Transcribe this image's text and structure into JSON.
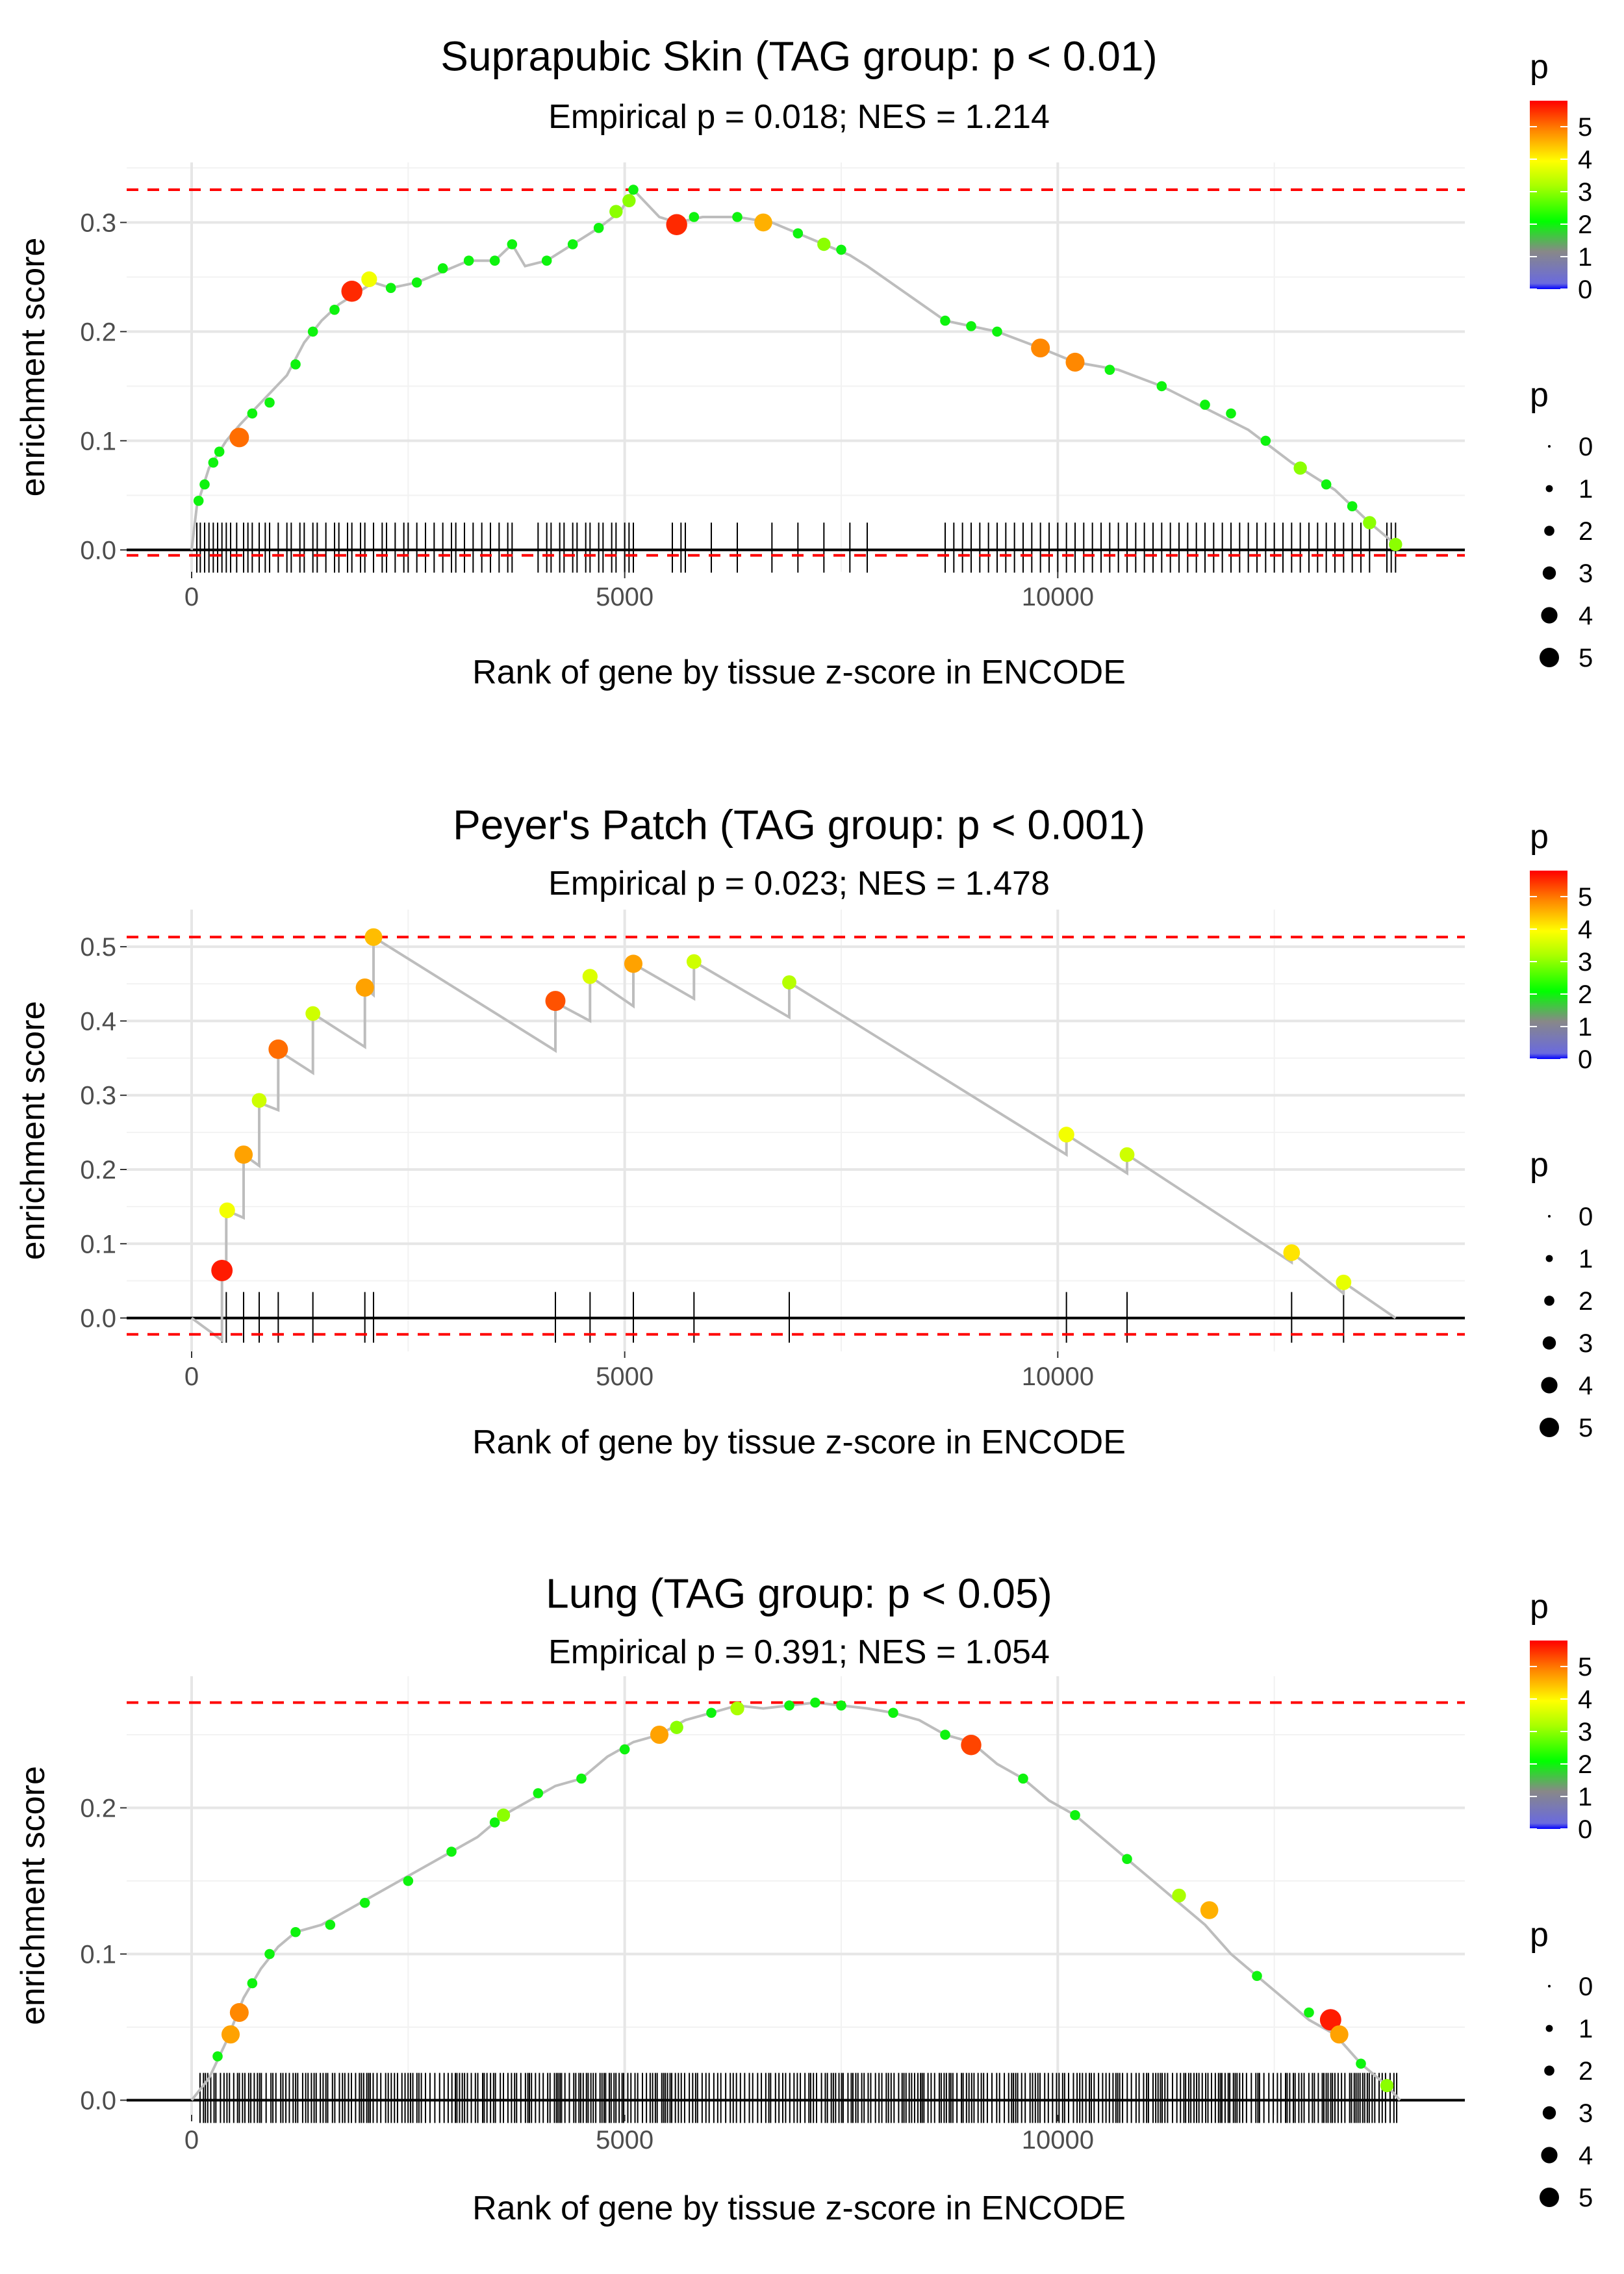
{
  "chart_data": [
    {
      "type": "line",
      "title": "Suprapubic Skin (TAG group: p < 0.01)",
      "subtitle": "Empirical p = 0.018; NES = 1.214",
      "xlabel": "Rank of gene by tissue z-score in ENCODE",
      "ylabel": "enrichment score",
      "xlim": [
        -750,
        14700
      ],
      "ylim": [
        -0.02,
        0.355
      ],
      "xticks": [
        0,
        5000,
        10000
      ],
      "xtick_labels": [
        "0",
        "5000",
        "10000"
      ],
      "yticks": [
        0.0,
        0.1,
        0.2,
        0.3
      ],
      "ytick_labels": [
        "0.0",
        "0.1",
        "0.2",
        "0.3"
      ],
      "max_es": 0.33,
      "min_es": -0.005,
      "grid": true,
      "path": [
        [
          0,
          0
        ],
        [
          60,
          0.04
        ],
        [
          200,
          0.075
        ],
        [
          400,
          0.1
        ],
        [
          560,
          0.115
        ],
        [
          800,
          0.135
        ],
        [
          1100,
          0.16
        ],
        [
          1300,
          0.19
        ],
        [
          1500,
          0.21
        ],
        [
          1700,
          0.225
        ],
        [
          1900,
          0.235
        ],
        [
          2100,
          0.245
        ],
        [
          2300,
          0.24
        ],
        [
          2600,
          0.245
        ],
        [
          2900,
          0.255
        ],
        [
          3200,
          0.265
        ],
        [
          3500,
          0.265
        ],
        [
          3700,
          0.28
        ],
        [
          3850,
          0.26
        ],
        [
          4100,
          0.265
        ],
        [
          4400,
          0.28
        ],
        [
          4700,
          0.295
        ],
        [
          4950,
          0.31
        ],
        [
          5100,
          0.33
        ],
        [
          5400,
          0.305
        ],
        [
          5600,
          0.3
        ],
        [
          5900,
          0.305
        ],
        [
          6300,
          0.305
        ],
        [
          6700,
          0.3
        ],
        [
          7000,
          0.29
        ],
        [
          7300,
          0.28
        ],
        [
          7600,
          0.27
        ],
        [
          7800,
          0.26
        ],
        [
          8700,
          0.21
        ],
        [
          9300,
          0.2
        ],
        [
          9800,
          0.185
        ],
        [
          10200,
          0.172
        ],
        [
          10700,
          0.165
        ],
        [
          11200,
          0.15
        ],
        [
          11700,
          0.13
        ],
        [
          12200,
          0.11
        ],
        [
          12700,
          0.08
        ],
        [
          13200,
          0.055
        ],
        [
          13600,
          0.025
        ],
        [
          13900,
          0.005
        ]
      ],
      "points": [
        [
          80,
          0.045,
          2
        ],
        [
          150,
          0.06,
          2
        ],
        [
          250,
          0.08,
          2
        ],
        [
          320,
          0.09,
          2
        ],
        [
          550,
          0.103,
          5
        ],
        [
          700,
          0.125,
          2
        ],
        [
          900,
          0.135,
          2
        ],
        [
          1200,
          0.17,
          2
        ],
        [
          1400,
          0.2,
          2
        ],
        [
          1650,
          0.22,
          2
        ],
        [
          1850,
          0.237,
          5.5
        ],
        [
          2050,
          0.248,
          3.8
        ],
        [
          2300,
          0.24,
          2
        ],
        [
          2600,
          0.245,
          2
        ],
        [
          2900,
          0.258,
          2
        ],
        [
          3200,
          0.265,
          2
        ],
        [
          3500,
          0.265,
          2
        ],
        [
          3700,
          0.28,
          2
        ],
        [
          4100,
          0.265,
          2
        ],
        [
          4400,
          0.28,
          2
        ],
        [
          4700,
          0.295,
          2
        ],
        [
          4900,
          0.31,
          3
        ],
        [
          5050,
          0.32,
          3
        ],
        [
          5100,
          0.33,
          2
        ],
        [
          5600,
          0.298,
          5.5
        ],
        [
          5800,
          0.305,
          2
        ],
        [
          6300,
          0.305,
          2
        ],
        [
          6600,
          0.3,
          4.5
        ],
        [
          7000,
          0.29,
          2
        ],
        [
          7300,
          0.28,
          3
        ],
        [
          7500,
          0.275,
          2
        ],
        [
          8700,
          0.21,
          2
        ],
        [
          9000,
          0.205,
          2
        ],
        [
          9300,
          0.2,
          2
        ],
        [
          9800,
          0.185,
          4.8
        ],
        [
          10200,
          0.172,
          4.8
        ],
        [
          10600,
          0.165,
          2
        ],
        [
          11200,
          0.15,
          2
        ],
        [
          11700,
          0.133,
          2
        ],
        [
          12000,
          0.125,
          2
        ],
        [
          12400,
          0.1,
          2
        ],
        [
          12800,
          0.075,
          3
        ],
        [
          13100,
          0.06,
          2
        ],
        [
          13400,
          0.04,
          2
        ],
        [
          13600,
          0.025,
          3
        ],
        [
          13900,
          0.005,
          3
        ]
      ],
      "gene_ranks": [
        60,
        100,
        150,
        200,
        250,
        300,
        350,
        400,
        450,
        520,
        600,
        650,
        700,
        780,
        850,
        900,
        1000,
        1100,
        1150,
        1250,
        1300,
        1400,
        1450,
        1550,
        1650,
        1700,
        1800,
        1850,
        1950,
        2000,
        2100,
        2200,
        2250,
        2350,
        2450,
        2500,
        2600,
        2700,
        2800,
        2900,
        3000,
        3050,
        3150,
        3250,
        3350,
        3450,
        3550,
        3650,
        3700,
        4000,
        4100,
        4150,
        4250,
        4300,
        4400,
        4450,
        4550,
        4600,
        4700,
        4750,
        4850,
        4900,
        5000,
        5050,
        5100,
        5550,
        5650,
        5700,
        6000,
        6300,
        6700,
        7000,
        7300,
        7600,
        7800,
        8700,
        8800,
        8900,
        9000,
        9100,
        9200,
        9300,
        9400,
        9500,
        9600,
        9700,
        9800,
        9900,
        10000,
        10100,
        10200,
        10300,
        10400,
        10500,
        10600,
        10700,
        10800,
        10900,
        11000,
        11100,
        11200,
        11300,
        11400,
        11500,
        11600,
        11700,
        11800,
        11900,
        12000,
        12100,
        12200,
        12300,
        12400,
        12500,
        12600,
        12700,
        12800,
        12900,
        13000,
        13100,
        13200,
        13300,
        13400,
        13500,
        13600,
        13800,
        13850,
        13900
      ]
    },
    {
      "type": "line",
      "title": "Peyer's Patch (TAG group: p < 0.001)",
      "subtitle": "Empirical p = 0.023; NES = 1.478",
      "xlabel": "Rank of gene by tissue z-score in ENCODE",
      "ylabel": "enrichment score",
      "xlim": [
        -750,
        14700
      ],
      "ylim": [
        -0.045,
        0.55
      ],
      "xticks": [
        0,
        5000,
        10000
      ],
      "xtick_labels": [
        "0",
        "5000",
        "10000"
      ],
      "yticks": [
        0.0,
        0.1,
        0.2,
        0.3,
        0.4,
        0.5
      ],
      "ytick_labels": [
        "0.0",
        "0.1",
        "0.2",
        "0.3",
        "0.4",
        "0.5"
      ],
      "max_es": 0.513,
      "min_es": -0.022,
      "grid": true,
      "path": [
        [
          0,
          0
        ],
        [
          350,
          -0.03
        ],
        [
          350,
          0.06
        ],
        [
          400,
          0.055
        ],
        [
          400,
          0.145
        ],
        [
          600,
          0.135
        ],
        [
          600,
          0.22
        ],
        [
          780,
          0.205
        ],
        [
          780,
          0.29
        ],
        [
          1000,
          0.28
        ],
        [
          1000,
          0.36
        ],
        [
          1400,
          0.33
        ],
        [
          1400,
          0.41
        ],
        [
          2000,
          0.365
        ],
        [
          2000,
          0.445
        ],
        [
          2100,
          0.435
        ],
        [
          2100,
          0.513
        ],
        [
          4200,
          0.36
        ],
        [
          4200,
          0.425
        ],
        [
          4600,
          0.4
        ],
        [
          4600,
          0.46
        ],
        [
          5100,
          0.42
        ],
        [
          5100,
          0.477
        ],
        [
          5800,
          0.43
        ],
        [
          5800,
          0.48
        ],
        [
          6900,
          0.405
        ],
        [
          6900,
          0.452
        ],
        [
          10100,
          0.22
        ],
        [
          10100,
          0.247
        ],
        [
          10800,
          0.195
        ],
        [
          10800,
          0.22
        ],
        [
          12700,
          0.075
        ],
        [
          12700,
          0.088
        ],
        [
          13300,
          0.033
        ],
        [
          13300,
          0.048
        ],
        [
          13900,
          0
        ]
      ],
      "points": [
        [
          350,
          0.064,
          5.6
        ],
        [
          410,
          0.145,
          3.8
        ],
        [
          600,
          0.22,
          4.6
        ],
        [
          780,
          0.293,
          3.5
        ],
        [
          1000,
          0.362,
          5
        ],
        [
          1400,
          0.41,
          3.5
        ],
        [
          2000,
          0.445,
          4.6
        ],
        [
          2100,
          0.513,
          4.4
        ],
        [
          4200,
          0.427,
          5.2
        ],
        [
          4600,
          0.46,
          3.6
        ],
        [
          5100,
          0.477,
          4.6
        ],
        [
          5800,
          0.48,
          3.5
        ],
        [
          6900,
          0.452,
          3.3
        ],
        [
          10100,
          0.247,
          3.8
        ],
        [
          10800,
          0.22,
          3.5
        ],
        [
          12700,
          0.088,
          4.1
        ],
        [
          13300,
          0.048,
          3.7
        ]
      ],
      "gene_ranks": [
        350,
        400,
        600,
        780,
        1000,
        1400,
        2000,
        2100,
        4200,
        4600,
        5100,
        5800,
        6900,
        10100,
        10800,
        12700,
        13300
      ]
    },
    {
      "type": "line",
      "title": "Lung (TAG group: p < 0.05)",
      "subtitle": "Empirical p = 0.391; NES = 1.054",
      "xlabel": "Rank of gene by tissue z-score in ENCODE",
      "ylabel": "enrichment score",
      "xlim": [
        -750,
        14700
      ],
      "ylim": [
        -0.01,
        0.29
      ],
      "xticks": [
        0,
        5000,
        10000
      ],
      "xtick_labels": [
        "0",
        "5000",
        "10000"
      ],
      "yticks": [
        0.0,
        0.1,
        0.2
      ],
      "ytick_labels": [
        "0.0",
        "0.1",
        "0.2"
      ],
      "max_es": 0.272,
      "min_es": 0,
      "grid": true,
      "path": [
        [
          0,
          0
        ],
        [
          200,
          0.015
        ],
        [
          400,
          0.04
        ],
        [
          600,
          0.07
        ],
        [
          800,
          0.09
        ],
        [
          1000,
          0.105
        ],
        [
          1200,
          0.115
        ],
        [
          1500,
          0.12
        ],
        [
          1800,
          0.13
        ],
        [
          2100,
          0.14
        ],
        [
          2400,
          0.15
        ],
        [
          2700,
          0.16
        ],
        [
          3000,
          0.17
        ],
        [
          3300,
          0.18
        ],
        [
          3600,
          0.195
        ],
        [
          3900,
          0.205
        ],
        [
          4200,
          0.215
        ],
        [
          4500,
          0.22
        ],
        [
          4800,
          0.235
        ],
        [
          5100,
          0.245
        ],
        [
          5400,
          0.25
        ],
        [
          5700,
          0.26
        ],
        [
          6000,
          0.265
        ],
        [
          6300,
          0.27
        ],
        [
          6600,
          0.268
        ],
        [
          6900,
          0.27
        ],
        [
          7200,
          0.272
        ],
        [
          7500,
          0.27
        ],
        [
          7800,
          0.268
        ],
        [
          8100,
          0.265
        ],
        [
          8400,
          0.26
        ],
        [
          8700,
          0.25
        ],
        [
          9000,
          0.245
        ],
        [
          9300,
          0.23
        ],
        [
          9600,
          0.22
        ],
        [
          9900,
          0.205
        ],
        [
          10200,
          0.195
        ],
        [
          10500,
          0.18
        ],
        [
          10800,
          0.165
        ],
        [
          11100,
          0.15
        ],
        [
          11400,
          0.135
        ],
        [
          11700,
          0.12
        ],
        [
          12000,
          0.1
        ],
        [
          12300,
          0.085
        ],
        [
          12600,
          0.07
        ],
        [
          12900,
          0.055
        ],
        [
          13200,
          0.045
        ],
        [
          13500,
          0.025
        ],
        [
          13800,
          0.01
        ],
        [
          13950,
          0
        ]
      ],
      "points": [
        [
          300,
          0.03,
          2
        ],
        [
          450,
          0.045,
          4.6
        ],
        [
          550,
          0.06,
          4.8
        ],
        [
          700,
          0.08,
          2
        ],
        [
          900,
          0.1,
          2
        ],
        [
          1200,
          0.115,
          2
        ],
        [
          1600,
          0.12,
          2
        ],
        [
          2000,
          0.135,
          2
        ],
        [
          2500,
          0.15,
          2
        ],
        [
          3000,
          0.17,
          2
        ],
        [
          3500,
          0.19,
          2
        ],
        [
          3600,
          0.195,
          3
        ],
        [
          4000,
          0.21,
          2
        ],
        [
          4500,
          0.22,
          2
        ],
        [
          5000,
          0.24,
          2
        ],
        [
          5400,
          0.25,
          4.6
        ],
        [
          5600,
          0.255,
          3
        ],
        [
          6000,
          0.265,
          2
        ],
        [
          6300,
          0.268,
          3.2
        ],
        [
          6900,
          0.27,
          2
        ],
        [
          7200,
          0.272,
          2
        ],
        [
          7500,
          0.27,
          2
        ],
        [
          8100,
          0.265,
          2
        ],
        [
          8700,
          0.25,
          2
        ],
        [
          9000,
          0.243,
          5.3
        ],
        [
          9600,
          0.22,
          2
        ],
        [
          10200,
          0.195,
          2
        ],
        [
          10800,
          0.165,
          2
        ],
        [
          11400,
          0.14,
          3.2
        ],
        [
          11750,
          0.13,
          4.5
        ],
        [
          12300,
          0.085,
          2
        ],
        [
          12900,
          0.06,
          2
        ],
        [
          13150,
          0.055,
          5.6
        ],
        [
          13250,
          0.045,
          4.6
        ],
        [
          13500,
          0.025,
          2
        ],
        [
          13800,
          0.01,
          3
        ]
      ],
      "gene_ranks": []
    }
  ],
  "legend": {
    "color_title": "p",
    "color_ticks": [
      "0",
      "1",
      "2",
      "3",
      "4",
      "5"
    ],
    "size_title": "p",
    "size_labels": [
      "0",
      "1",
      "2",
      "3",
      "4",
      "5"
    ],
    "colors": [
      "#0000ff",
      "#888888",
      "#00ff00",
      "#ffff00",
      "#ff8800",
      "#ff0000"
    ]
  }
}
